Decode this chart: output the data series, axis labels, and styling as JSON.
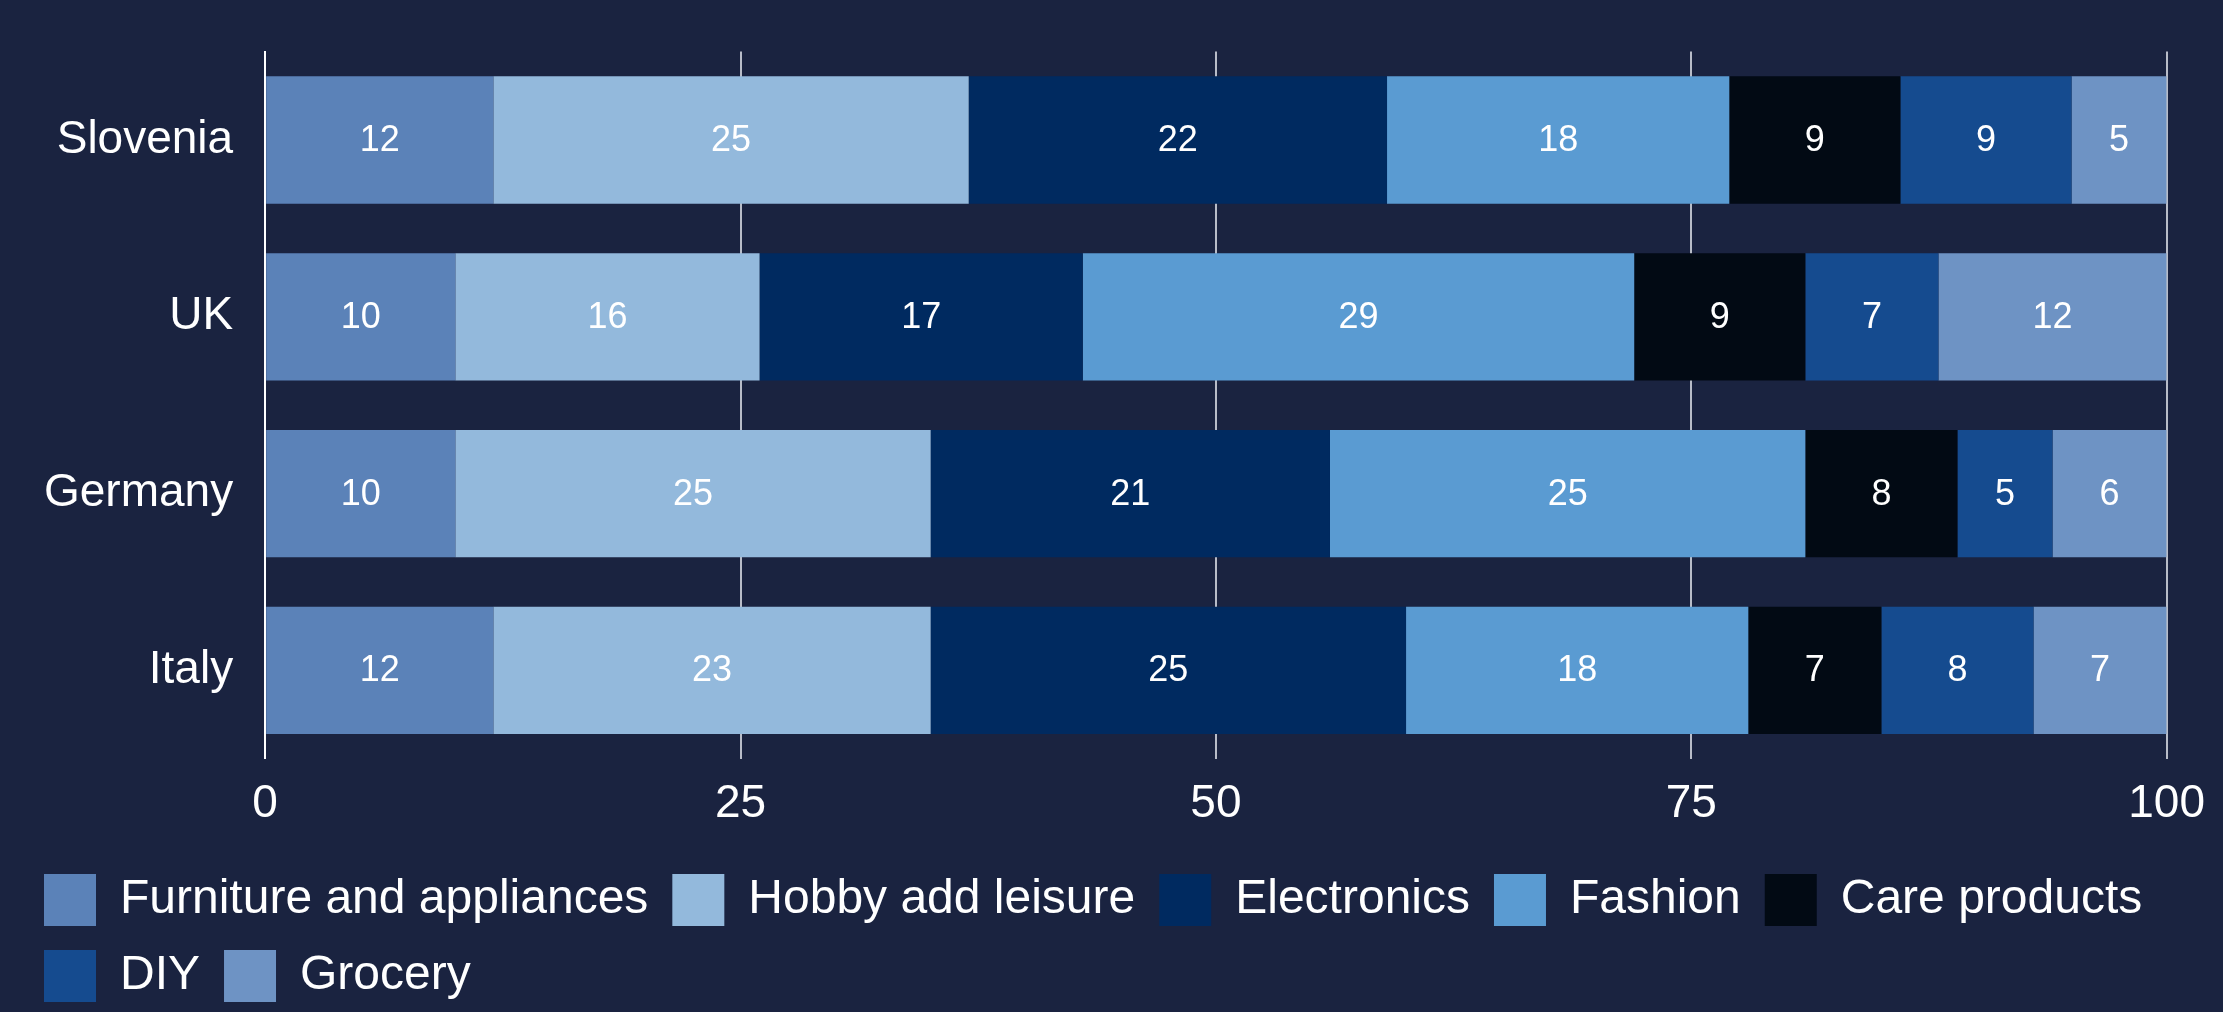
{
  "chart_data": {
    "type": "bar",
    "orientation": "horizontal",
    "stacked": true,
    "categories": [
      "Slovenia",
      "UK",
      "Germany",
      "Italy"
    ],
    "series": [
      {
        "name": "Furniture and appliances",
        "color": "#5b82b8",
        "values": [
          12,
          10,
          10,
          12
        ]
      },
      {
        "name": "Hobby add leisure",
        "color": "#93b9dc",
        "values": [
          25,
          16,
          25,
          23
        ]
      },
      {
        "name": "Electronics",
        "color": "#002a60",
        "values": [
          22,
          17,
          21,
          25
        ]
      },
      {
        "name": "Fashion",
        "color": "#5a9bd2",
        "values": [
          18,
          29,
          25,
          18
        ]
      },
      {
        "name": "Care products",
        "color": "#020a14",
        "values": [
          9,
          9,
          8,
          7
        ]
      },
      {
        "name": "DIY",
        "color": "#154b8f",
        "values": [
          9,
          7,
          5,
          8
        ]
      },
      {
        "name": "Grocery",
        "color": "#6e93c4",
        "values": [
          5,
          12,
          6,
          7
        ]
      }
    ],
    "xlim": [
      0,
      100
    ],
    "xticks": [
      0,
      25,
      50,
      75,
      100
    ],
    "grid": "x",
    "legend": "bottom",
    "data_labels": true
  }
}
